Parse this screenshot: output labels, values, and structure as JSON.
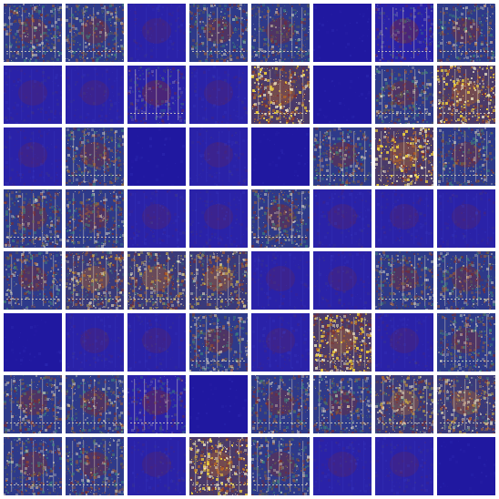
{
  "grid": {
    "rows": 8,
    "cols": 8,
    "tiles": [
      "bright",
      "bright",
      "dark",
      "bright",
      "bright",
      "blank",
      "mid",
      "bright",
      "dark",
      "dark",
      "mid",
      "dark",
      "yellow",
      "blank",
      "bright",
      "yellow",
      "dark",
      "bright",
      "blank",
      "dark",
      "blank",
      "bright",
      "yellow",
      "bright",
      "bright",
      "bright",
      "dark",
      "dark",
      "bright",
      "dark",
      "dark",
      "dark",
      "bright",
      "warm",
      "warm",
      "warm",
      "dark",
      "dark",
      "bright",
      "bright",
      "blank",
      "dark",
      "dark",
      "bright",
      "dark",
      "yellow",
      "dark",
      "bright",
      "bright",
      "bright",
      "mid",
      "blank",
      "bright",
      "bright",
      "warm",
      "warm",
      "bright",
      "bright",
      "dark",
      "yellow",
      "bright",
      "dark",
      "dark",
      "blank"
    ]
  },
  "colors": {
    "background": "#ffffff",
    "blue_base": "#2a22a8",
    "blue_deep": "#2018a0",
    "blue_light": "#3b3cc4",
    "red": "#8a2a20",
    "orange": "#c06a20",
    "yellow": "#f2d23a",
    "cream": "#f6eec8",
    "teal": "#3f8a7a",
    "olive": "#6a6a40"
  }
}
